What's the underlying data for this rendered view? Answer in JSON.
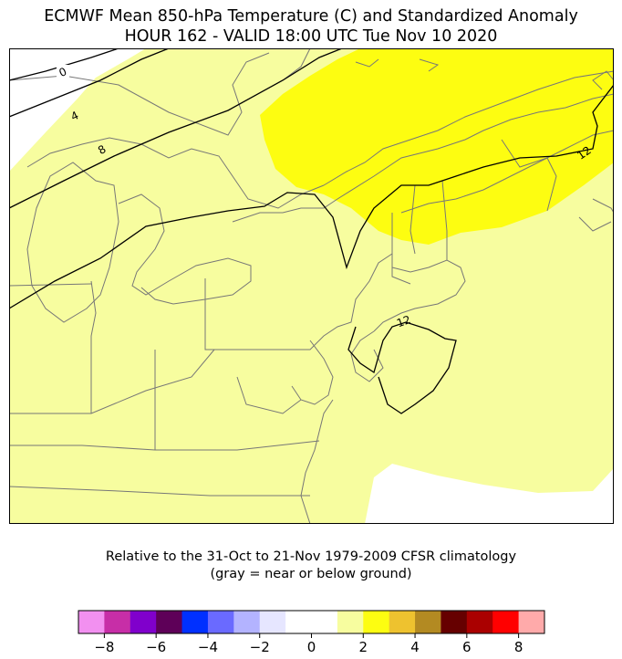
{
  "title_line1": "ECMWF Mean 850-hPa Temperature (C) and Standardized Anomaly",
  "title_line2": "HOUR 162 - VALID 18:00 UTC Tue Nov 10 2020",
  "footer_line1": "Relative to the 31-Oct to 21-Nov 1979-2009 CFSR climatology",
  "footer_line2": "(gray = near or below ground)",
  "map": {
    "region": "Northeastern United States",
    "fill_colors": {
      "weak_positive_anomaly": "#f7fd9f",
      "strong_positive_anomaly": "#fdfd11",
      "neutral": "#ffffff"
    },
    "contour_labels": [
      "0",
      "4",
      "8",
      "12",
      "12"
    ]
  },
  "colorbar": {
    "colors": [
      "#f290f0",
      "#c72ea7",
      "#8000cc",
      "#5e0058",
      "#0030ff",
      "#6a6aff",
      "#b3b3ff",
      "#e6e6ff",
      "#ffffff",
      "#ffffff",
      "#f7fd9f",
      "#fdfd11",
      "#eec22f",
      "#b38a22",
      "#660000",
      "#aa0000",
      "#ff0000",
      "#ffaaaa"
    ],
    "tick_labels": [
      "−8",
      "−6",
      "−4",
      "−2",
      "0",
      "2",
      "4",
      "6",
      "8"
    ]
  }
}
